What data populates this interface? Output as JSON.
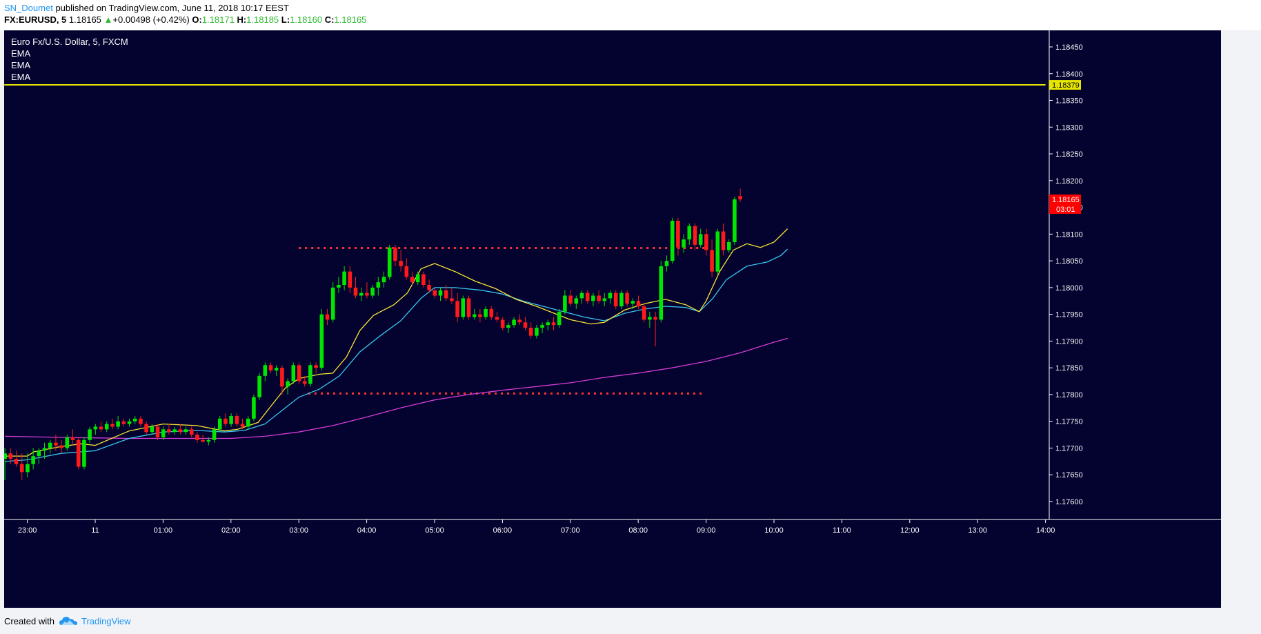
{
  "header": {
    "author": "SN_Doumet",
    "published": "published on TradingView.com, June 11, 2018 10:17 EEST",
    "symbol": "FX:EURUSD, 5",
    "last": "1.18165",
    "change_arrow": "▲",
    "change": "+0.00498 (+0.42%)",
    "o_label": "O:",
    "o_value": "1.18171",
    "h_label": "H:",
    "h_value": "1.18185",
    "l_label": "L:",
    "l_value": "1.18160",
    "c_label": "C:",
    "c_value": "1.18165"
  },
  "legend": {
    "title": "Euro Fx/U.S. Dollar, 5, FXCM",
    "indicators": [
      "EMA",
      "EMA",
      "EMA"
    ]
  },
  "footer": {
    "created_with": "Created with",
    "brand": "TradingView",
    "brand_icon": "cloud-logo-icon"
  },
  "colors": {
    "background": "#04022f",
    "up_candle": "#00e600",
    "down_candle": "#ff1a1a",
    "ema_fast": "#f7e633",
    "ema_mid": "#38c8f0",
    "ema_slow": "#d63dd6",
    "resistance_line": "#e6e600",
    "range_lines": "#ff3333",
    "price_label_bg": "#ff0000"
  },
  "chart_data": {
    "type": "candlestick",
    "symbol": "EURUSD",
    "interval": "5",
    "ylim": [
      1.1758,
      1.18495
    ],
    "y_ticks": [
      "1.17600",
      "1.17650",
      "1.17700",
      "1.17750",
      "1.17800",
      "1.17850",
      "1.17900",
      "1.17950",
      "1.18000",
      "1.18050",
      "1.18100",
      "1.18150",
      "1.18200",
      "1.18250",
      "1.18300",
      "1.18350",
      "1.18400",
      "1.18450"
    ],
    "x_ticks": [
      {
        "label": "23:00",
        "t": -1
      },
      {
        "label": "11",
        "t": 0
      },
      {
        "label": "01:00",
        "t": 1
      },
      {
        "label": "02:00",
        "t": 2
      },
      {
        "label": "03:00",
        "t": 3
      },
      {
        "label": "04:00",
        "t": 4
      },
      {
        "label": "05:00",
        "t": 5
      },
      {
        "label": "06:00",
        "t": 6
      },
      {
        "label": "07:00",
        "t": 7
      },
      {
        "label": "08:00",
        "t": 8
      },
      {
        "label": "09:00",
        "t": 9
      },
      {
        "label": "10:00",
        "t": 10
      },
      {
        "label": "11:00",
        "t": 11
      },
      {
        "label": "12:00",
        "t": 12
      },
      {
        "label": "13:00",
        "t": 13
      },
      {
        "label": "14:00",
        "t": 14
      }
    ],
    "candles_start_t": -1.33,
    "candle_interval_hours": 0.08333,
    "candles": [
      [
        1.1768,
        1.177,
        1.1764,
        1.1769
      ],
      [
        1.1769,
        1.177,
        1.1767,
        1.1768
      ],
      [
        1.1768,
        1.17695,
        1.17665,
        1.1767
      ],
      [
        1.1767,
        1.1769,
        1.1764,
        1.17655
      ],
      [
        1.17655,
        1.1769,
        1.17645,
        1.1767
      ],
      [
        1.1767,
        1.177,
        1.1766,
        1.17685
      ],
      [
        1.17685,
        1.177,
        1.1767,
        1.17695
      ],
      [
        1.17695,
        1.1771,
        1.1768,
        1.177
      ],
      [
        1.177,
        1.17715,
        1.1769,
        1.1771
      ],
      [
        1.1771,
        1.17725,
        1.17695,
        1.17705
      ],
      [
        1.17705,
        1.17715,
        1.1769,
        1.177
      ],
      [
        1.177,
        1.17725,
        1.17695,
        1.1772
      ],
      [
        1.1772,
        1.17735,
        1.17705,
        1.17715
      ],
      [
        1.17715,
        1.1772,
        1.1766,
        1.17665
      ],
      [
        1.17665,
        1.1772,
        1.1766,
        1.17715
      ],
      [
        1.17715,
        1.1774,
        1.1771,
        1.17735
      ],
      [
        1.17735,
        1.17745,
        1.17725,
        1.1774
      ],
      [
        1.1774,
        1.1775,
        1.1773,
        1.17735
      ],
      [
        1.17735,
        1.1775,
        1.1773,
        1.17745
      ],
      [
        1.17745,
        1.17755,
        1.17735,
        1.1774
      ],
      [
        1.1774,
        1.1776,
        1.17735,
        1.1775
      ],
      [
        1.1775,
        1.17755,
        1.1774,
        1.17745
      ],
      [
        1.17745,
        1.17755,
        1.1774,
        1.1775
      ],
      [
        1.1775,
        1.1776,
        1.17745,
        1.17755
      ],
      [
        1.17755,
        1.1776,
        1.1774,
        1.17745
      ],
      [
        1.17745,
        1.1775,
        1.17725,
        1.1773
      ],
      [
        1.1773,
        1.17745,
        1.17725,
        1.1774
      ],
      [
        1.1774,
        1.17745,
        1.17715,
        1.1772
      ],
      [
        1.1772,
        1.1774,
        1.17715,
        1.17735
      ],
      [
        1.17735,
        1.17745,
        1.17725,
        1.1773
      ],
      [
        1.1773,
        1.1774,
        1.17725,
        1.17735
      ],
      [
        1.17735,
        1.17745,
        1.17725,
        1.1773
      ],
      [
        1.1773,
        1.1774,
        1.17725,
        1.17735
      ],
      [
        1.17735,
        1.1774,
        1.1772,
        1.17725
      ],
      [
        1.17725,
        1.1773,
        1.1771,
        1.17715
      ],
      [
        1.17715,
        1.17725,
        1.1771,
        1.17712
      ],
      [
        1.17712,
        1.1772,
        1.17705,
        1.17715
      ],
      [
        1.17715,
        1.1774,
        1.1771,
        1.17735
      ],
      [
        1.17735,
        1.1776,
        1.1773,
        1.17755
      ],
      [
        1.17755,
        1.17765,
        1.1774,
        1.17745
      ],
      [
        1.17745,
        1.17765,
        1.1774,
        1.1776
      ],
      [
        1.1776,
        1.17765,
        1.1774,
        1.17745
      ],
      [
        1.17745,
        1.17755,
        1.17735,
        1.1774
      ],
      [
        1.1774,
        1.1776,
        1.17735,
        1.17755
      ],
      [
        1.17755,
        1.178,
        1.1775,
        1.17795
      ],
      [
        1.17795,
        1.1784,
        1.1779,
        1.17835
      ],
      [
        1.17835,
        1.1786,
        1.17825,
        1.17855
      ],
      [
        1.17855,
        1.1786,
        1.1784,
        1.17845
      ],
      [
        1.17845,
        1.17855,
        1.17835,
        1.1785
      ],
      [
        1.1785,
        1.17855,
        1.178,
        1.17815
      ],
      [
        1.17815,
        1.1783,
        1.178,
        1.17825
      ],
      [
        1.17825,
        1.1786,
        1.1782,
        1.17855
      ],
      [
        1.17855,
        1.1786,
        1.1782,
        1.17825
      ],
      [
        1.17825,
        1.17835,
        1.17815,
        1.1782
      ],
      [
        1.1782,
        1.1786,
        1.17815,
        1.17855
      ],
      [
        1.17855,
        1.1786,
        1.1784,
        1.1785
      ],
      [
        1.1785,
        1.1796,
        1.17845,
        1.1795
      ],
      [
        1.1795,
        1.1796,
        1.1793,
        1.1794
      ],
      [
        1.1794,
        1.1801,
        1.17935,
        1.18
      ],
      [
        1.18,
        1.1802,
        1.1799,
        1.18005
      ],
      [
        1.18005,
        1.1804,
        1.17995,
        1.1803
      ],
      [
        1.1803,
        1.1804,
        1.1799,
        1.18
      ],
      [
        1.18,
        1.1802,
        1.1798,
        1.17985
      ],
      [
        1.17985,
        1.18,
        1.17975,
        1.1799
      ],
      [
        1.1799,
        1.1801,
        1.1798,
        1.17985
      ],
      [
        1.17985,
        1.18005,
        1.1798,
        1.18
      ],
      [
        1.18,
        1.1802,
        1.17985,
        1.1801
      ],
      [
        1.1801,
        1.1803,
        1.18,
        1.1802
      ],
      [
        1.1802,
        1.1808,
        1.18015,
        1.18075
      ],
      [
        1.18075,
        1.1808,
        1.1804,
        1.1805
      ],
      [
        1.1805,
        1.1807,
        1.1803,
        1.1804
      ],
      [
        1.1804,
        1.18055,
        1.18015,
        1.1802
      ],
      [
        1.1802,
        1.1803,
        1.18005,
        1.1801
      ],
      [
        1.1801,
        1.1803,
        1.18005,
        1.18025
      ],
      [
        1.18025,
        1.1803,
        1.18,
        1.18005
      ],
      [
        1.18005,
        1.18015,
        1.1799,
        1.17995
      ],
      [
        1.17995,
        1.18,
        1.1798,
        1.17985
      ],
      [
        1.17985,
        1.18,
        1.17975,
        1.17995
      ],
      [
        1.17995,
        1.18005,
        1.17975,
        1.1798
      ],
      [
        1.1798,
        1.18,
        1.1797,
        1.17975
      ],
      [
        1.17975,
        1.1799,
        1.17935,
        1.17945
      ],
      [
        1.17945,
        1.17985,
        1.1794,
        1.1798
      ],
      [
        1.1798,
        1.17985,
        1.1794,
        1.17945
      ],
      [
        1.17945,
        1.1796,
        1.1794,
        1.1795
      ],
      [
        1.1795,
        1.1796,
        1.17935,
        1.17945
      ],
      [
        1.17945,
        1.17965,
        1.1794,
        1.1796
      ],
      [
        1.1796,
        1.17965,
        1.1794,
        1.17945
      ],
      [
        1.17945,
        1.17955,
        1.17935,
        1.1794
      ],
      [
        1.1794,
        1.17945,
        1.1792,
        1.17925
      ],
      [
        1.17925,
        1.17935,
        1.17915,
        1.1793
      ],
      [
        1.1793,
        1.17945,
        1.17925,
        1.1794
      ],
      [
        1.1794,
        1.1795,
        1.1793,
        1.17935
      ],
      [
        1.17935,
        1.17945,
        1.1792,
        1.17925
      ],
      [
        1.17925,
        1.17935,
        1.17905,
        1.1791
      ],
      [
        1.1791,
        1.1793,
        1.17905,
        1.17925
      ],
      [
        1.17925,
        1.17935,
        1.17915,
        1.1793
      ],
      [
        1.1793,
        1.1794,
        1.1792,
        1.17935
      ],
      [
        1.17935,
        1.17945,
        1.1792,
        1.1793
      ],
      [
        1.1793,
        1.1796,
        1.17925,
        1.17955
      ],
      [
        1.17955,
        1.17995,
        1.1795,
        1.17985
      ],
      [
        1.17985,
        1.17995,
        1.17965,
        1.1797
      ],
      [
        1.1797,
        1.17985,
        1.1796,
        1.1798
      ],
      [
        1.1798,
        1.17995,
        1.1797,
        1.1799
      ],
      [
        1.1799,
        1.17995,
        1.1797,
        1.17975
      ],
      [
        1.17975,
        1.1799,
        1.17965,
        1.17985
      ],
      [
        1.17985,
        1.17995,
        1.1797,
        1.17975
      ],
      [
        1.17975,
        1.1799,
        1.17965,
        1.1798
      ],
      [
        1.1798,
        1.17995,
        1.1797,
        1.1799
      ],
      [
        1.1799,
        1.17995,
        1.1796,
        1.17965
      ],
      [
        1.17965,
        1.17995,
        1.1796,
        1.1799
      ],
      [
        1.1799,
        1.17995,
        1.17965,
        1.1797
      ],
      [
        1.1797,
        1.1798,
        1.1796,
        1.17975
      ],
      [
        1.17975,
        1.17985,
        1.1796,
        1.17965
      ],
      [
        1.17965,
        1.1797,
        1.17935,
        1.1794
      ],
      [
        1.1794,
        1.17955,
        1.17925,
        1.17945
      ],
      [
        1.17945,
        1.17955,
        1.1789,
        1.1794
      ],
      [
        1.1794,
        1.1805,
        1.17935,
        1.1804
      ],
      [
        1.1804,
        1.1806,
        1.1803,
        1.1805
      ],
      [
        1.1805,
        1.1813,
        1.18045,
        1.18125
      ],
      [
        1.18125,
        1.1813,
        1.1806,
        1.18075
      ],
      [
        1.18075,
        1.181,
        1.18065,
        1.1809
      ],
      [
        1.1809,
        1.1812,
        1.1808,
        1.18115
      ],
      [
        1.18115,
        1.1812,
        1.1807,
        1.1808
      ],
      [
        1.1808,
        1.1811,
        1.18075,
        1.181
      ],
      [
        1.181,
        1.1811,
        1.1806,
        1.1807
      ],
      [
        1.1807,
        1.1809,
        1.1802,
        1.1803
      ],
      [
        1.1803,
        1.1811,
        1.18025,
        1.18105
      ],
      [
        1.18105,
        1.1812,
        1.1806,
        1.1807
      ],
      [
        1.1807,
        1.1809,
        1.18065,
        1.18085
      ],
      [
        1.18085,
        1.1817,
        1.1808,
        1.18165
      ],
      [
        1.18171,
        1.18185,
        1.1816,
        1.18165
      ]
    ],
    "ema_fast": [
      [
        -1.33,
        1.17685
      ],
      [
        -1.0,
        1.17685
      ],
      [
        -0.9,
        1.17693
      ],
      [
        -0.5,
        1.17703
      ],
      [
        -0.2,
        1.17708
      ],
      [
        0.0,
        1.17705
      ],
      [
        0.5,
        1.17732
      ],
      [
        1.0,
        1.17745
      ],
      [
        1.5,
        1.17742
      ],
      [
        1.9,
        1.17732
      ],
      [
        2.1,
        1.17735
      ],
      [
        2.4,
        1.17748
      ],
      [
        2.6,
        1.1778
      ],
      [
        2.8,
        1.17812
      ],
      [
        3.0,
        1.1783
      ],
      [
        3.3,
        1.17838
      ],
      [
        3.5,
        1.1784
      ],
      [
        3.7,
        1.1787
      ],
      [
        3.9,
        1.1792
      ],
      [
        4.1,
        1.17948
      ],
      [
        4.4,
        1.17968
      ],
      [
        4.6,
        1.1799
      ],
      [
        4.8,
        1.18035
      ],
      [
        5.0,
        1.18045
      ],
      [
        5.3,
        1.1803
      ],
      [
        5.6,
        1.18012
      ],
      [
        5.9,
        1.17998
      ],
      [
        6.2,
        1.17978
      ],
      [
        6.5,
        1.17965
      ],
      [
        6.8,
        1.1795
      ],
      [
        7.0,
        1.1794
      ],
      [
        7.3,
        1.17932
      ],
      [
        7.5,
        1.17935
      ],
      [
        7.8,
        1.17958
      ],
      [
        8.1,
        1.1797
      ],
      [
        8.4,
        1.17978
      ],
      [
        8.7,
        1.17968
      ],
      [
        8.9,
        1.17955
      ],
      [
        9.0,
        1.17975
      ],
      [
        9.2,
        1.1803
      ],
      [
        9.4,
        1.1807
      ],
      [
        9.6,
        1.18082
      ],
      [
        9.8,
        1.18075
      ],
      [
        10.0,
        1.18085
      ],
      [
        10.2,
        1.1811
      ]
    ],
    "ema_mid": [
      [
        -1.33,
        1.17675
      ],
      [
        -1.0,
        1.17678
      ],
      [
        -0.5,
        1.1769
      ],
      [
        0.0,
        1.17695
      ],
      [
        0.5,
        1.17718
      ],
      [
        1.0,
        1.1773
      ],
      [
        1.5,
        1.17733
      ],
      [
        1.9,
        1.1773
      ],
      [
        2.2,
        1.17733
      ],
      [
        2.5,
        1.17745
      ],
      [
        2.8,
        1.17775
      ],
      [
        3.0,
        1.17795
      ],
      [
        3.3,
        1.1781
      ],
      [
        3.6,
        1.17835
      ],
      [
        3.9,
        1.1788
      ],
      [
        4.2,
        1.1791
      ],
      [
        4.5,
        1.17938
      ],
      [
        4.8,
        1.1798
      ],
      [
        5.0,
        1.18
      ],
      [
        5.3,
        1.18
      ],
      [
        5.7,
        1.17995
      ],
      [
        6.0,
        1.17988
      ],
      [
        6.3,
        1.17975
      ],
      [
        6.6,
        1.17965
      ],
      [
        6.9,
        1.17955
      ],
      [
        7.2,
        1.17945
      ],
      [
        7.5,
        1.17938
      ],
      [
        7.8,
        1.17952
      ],
      [
        8.1,
        1.1796
      ],
      [
        8.4,
        1.17965
      ],
      [
        8.7,
        1.17963
      ],
      [
        8.9,
        1.17955
      ],
      [
        9.1,
        1.1798
      ],
      [
        9.3,
        1.18015
      ],
      [
        9.6,
        1.1804
      ],
      [
        9.9,
        1.18048
      ],
      [
        10.1,
        1.1806
      ],
      [
        10.2,
        1.18072
      ]
    ],
    "ema_slow": [
      [
        -1.33,
        1.17722
      ],
      [
        -0.5,
        1.1772
      ],
      [
        0.5,
        1.17718
      ],
      [
        1.5,
        1.17718
      ],
      [
        2.0,
        1.17718
      ],
      [
        2.5,
        1.17722
      ],
      [
        3.0,
        1.1773
      ],
      [
        3.5,
        1.17742
      ],
      [
        4.0,
        1.17758
      ],
      [
        4.5,
        1.17775
      ],
      [
        5.0,
        1.1779
      ],
      [
        5.5,
        1.178
      ],
      [
        6.0,
        1.17808
      ],
      [
        6.5,
        1.17815
      ],
      [
        7.0,
        1.17822
      ],
      [
        7.5,
        1.17832
      ],
      [
        8.0,
        1.1784
      ],
      [
        8.5,
        1.1785
      ],
      [
        9.0,
        1.17862
      ],
      [
        9.5,
        1.17878
      ],
      [
        10.0,
        1.17898
      ],
      [
        10.2,
        1.17905
      ]
    ],
    "hlines": [
      {
        "value": 1.18379,
        "label": "1.18379",
        "style": "solid",
        "color": "#e6e600",
        "from_t": -1.34,
        "to_t": 14.0
      },
      {
        "value": 1.18074,
        "style": "dotted",
        "color": "#ff3333",
        "from_t": 3.0,
        "to_t": 8.98
      },
      {
        "value": 1.17802,
        "style": "dotted",
        "color": "#ff3333",
        "from_t": 3.14,
        "to_t": 8.98
      }
    ],
    "price_label": {
      "value": 1.18165,
      "text": "1.18165",
      "countdown": "03:01"
    }
  }
}
